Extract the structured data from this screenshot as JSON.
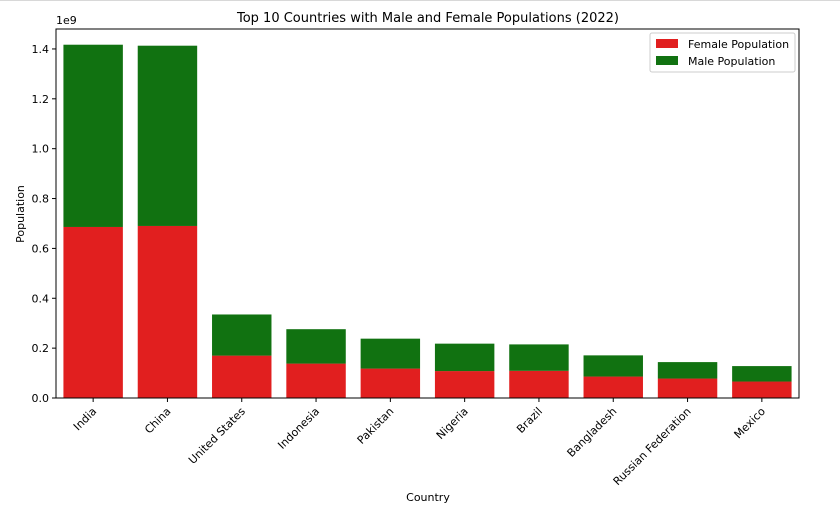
{
  "chart_data": {
    "type": "bar",
    "stacked": true,
    "title": "Top 10 Countries with Male and Female Populations (2022)",
    "xlabel": "Country",
    "ylabel": "Population",
    "y_scale_label": "1e9",
    "categories": [
      "India",
      "China",
      "United States",
      "Indonesia",
      "Pakistan",
      "Nigeria",
      "Brazil",
      "Bangladesh",
      "Russian Federation",
      "Mexico"
    ],
    "series": [
      {
        "name": "Female Population",
        "color": "#e11f1f",
        "values": [
          0.686,
          0.69,
          0.17,
          0.138,
          0.118,
          0.108,
          0.109,
          0.086,
          0.078,
          0.066
        ]
      },
      {
        "name": "Male Population",
        "color": "#117211",
        "values": [
          0.731,
          0.723,
          0.165,
          0.138,
          0.12,
          0.11,
          0.106,
          0.085,
          0.066,
          0.062
        ]
      }
    ],
    "yticks": [
      "0.0",
      "0.2",
      "0.4",
      "0.6",
      "0.8",
      "1.0",
      "1.2",
      "1.4"
    ],
    "ylim": [
      0,
      1.48
    ],
    "grid": false,
    "legend_position": "top-right"
  }
}
